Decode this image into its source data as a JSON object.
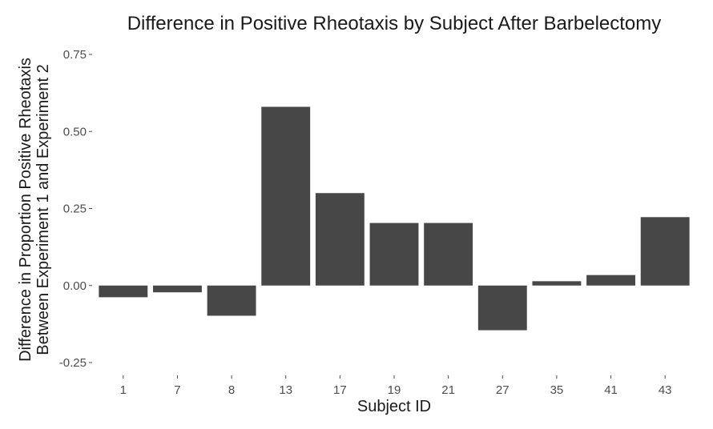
{
  "chart_data": {
    "type": "bar",
    "title": "Difference in Positive Rheotaxis by Subject After Barbelectomy",
    "xlabel": "Subject ID",
    "ylabel_lines": [
      "Difference in Proportion Positive Rheotaxis",
      "Between Experiment 1 and Experiment 2"
    ],
    "categories": [
      "1",
      "7",
      "8",
      "13",
      "17",
      "19",
      "21",
      "27",
      "35",
      "41",
      "43"
    ],
    "values": [
      -0.038,
      -0.022,
      -0.098,
      0.58,
      0.3,
      0.203,
      0.203,
      -0.145,
      0.014,
      0.034,
      0.222
    ],
    "y_ticks": [
      -0.25,
      0,
      0.25,
      0.5,
      0.75
    ],
    "y_tick_labels": [
      "-0.25",
      "0.00",
      "0.25",
      "0.50",
      "0.75"
    ],
    "ylim": [
      -0.28,
      0.78
    ],
    "grid": false,
    "bar_color": "#474747"
  }
}
